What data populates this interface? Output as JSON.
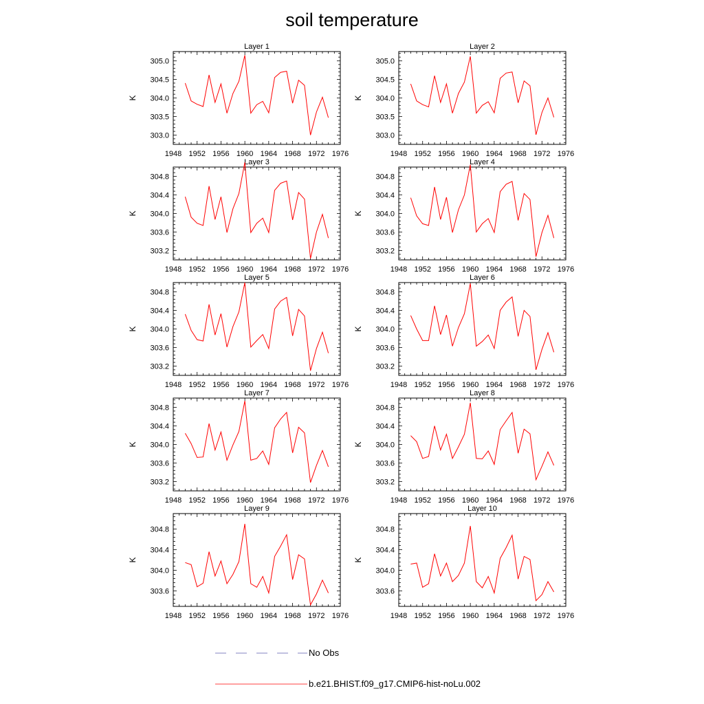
{
  "page": {
    "title": "soil temperature"
  },
  "legend": {
    "items": [
      {
        "label": "No Obs",
        "style": "dashed",
        "color": "#8080c0"
      },
      {
        "label": "b.e21.BHIST.f09_g17.CMIP6-hist-noLu.002",
        "style": "solid",
        "color": "#ff0000"
      }
    ]
  },
  "chart_data": [
    {
      "type": "line",
      "title": "Layer 1",
      "ylabel": "K",
      "xlim": [
        1948,
        1976
      ],
      "xticks": [
        1948,
        1952,
        1956,
        1960,
        1964,
        1968,
        1972,
        1976
      ],
      "ylim": [
        302.75,
        305.25
      ],
      "yticks": [
        "303.0",
        "303.5",
        "304.0",
        "304.5",
        "305.0"
      ],
      "x": [
        1950,
        1951,
        1952,
        1953,
        1954,
        1955,
        1956,
        1957,
        1958,
        1959,
        1960,
        1961,
        1962,
        1963,
        1964,
        1965,
        1966,
        1967,
        1968,
        1969,
        1970,
        1971,
        1972,
        1973,
        1974
      ],
      "series": [
        {
          "name": "b.e21.BHIST.f09_g17.CMIP6-hist-noLu.002",
          "color": "#ff0000",
          "values": [
            304.4,
            303.92,
            303.83,
            303.77,
            304.62,
            303.88,
            304.38,
            303.59,
            304.12,
            304.45,
            305.15,
            303.59,
            303.82,
            303.91,
            303.6,
            304.55,
            304.69,
            304.72,
            303.86,
            304.48,
            304.34,
            303.0,
            303.62,
            304.02,
            303.47
          ]
        }
      ]
    },
    {
      "type": "line",
      "title": "Layer 2",
      "ylabel": "K",
      "xlim": [
        1948,
        1976
      ],
      "xticks": [
        1948,
        1952,
        1956,
        1960,
        1964,
        1968,
        1972,
        1976
      ],
      "ylim": [
        302.75,
        305.25
      ],
      "yticks": [
        "303.0",
        "303.5",
        "304.0",
        "304.5",
        "305.0"
      ],
      "x": [
        1950,
        1951,
        1952,
        1953,
        1954,
        1955,
        1956,
        1957,
        1958,
        1959,
        1960,
        1961,
        1962,
        1963,
        1964,
        1965,
        1966,
        1967,
        1968,
        1969,
        1970,
        1971,
        1972,
        1973,
        1974
      ],
      "series": [
        {
          "name": "b.e21.BHIST.f09_g17.CMIP6-hist-noLu.002",
          "color": "#ff0000",
          "values": [
            304.38,
            303.92,
            303.82,
            303.76,
            304.6,
            303.88,
            304.38,
            303.59,
            304.12,
            304.43,
            305.12,
            303.59,
            303.8,
            303.9,
            303.6,
            304.53,
            304.67,
            304.7,
            303.87,
            304.46,
            304.33,
            303.01,
            303.61,
            304.0,
            303.48
          ]
        }
      ]
    },
    {
      "type": "line",
      "title": "Layer 3",
      "ylabel": "K",
      "xlim": [
        1948,
        1976
      ],
      "xticks": [
        1948,
        1952,
        1956,
        1960,
        1964,
        1968,
        1972,
        1976
      ],
      "ylim": [
        303.0,
        305.0
      ],
      "yticks": [
        "303.2",
        "303.6",
        "304.0",
        "304.4",
        "304.8"
      ],
      "x": [
        1950,
        1951,
        1952,
        1953,
        1954,
        1955,
        1956,
        1957,
        1958,
        1959,
        1960,
        1961,
        1962,
        1963,
        1964,
        1965,
        1966,
        1967,
        1968,
        1969,
        1970,
        1971,
        1972,
        1973,
        1974
      ],
      "series": [
        {
          "name": "b.e21.BHIST.f09_g17.CMIP6-hist-noLu.002",
          "color": "#ff0000",
          "values": [
            304.36,
            303.92,
            303.79,
            303.74,
            304.59,
            303.87,
            304.36,
            303.59,
            304.1,
            304.43,
            305.1,
            303.59,
            303.79,
            303.9,
            303.59,
            304.5,
            304.65,
            304.7,
            303.86,
            304.45,
            304.31,
            303.03,
            303.6,
            303.98,
            303.47
          ]
        }
      ]
    },
    {
      "type": "line",
      "title": "Layer 4",
      "ylabel": "K",
      "xlim": [
        1948,
        1976
      ],
      "xticks": [
        1948,
        1952,
        1956,
        1960,
        1964,
        1968,
        1972,
        1976
      ],
      "ylim": [
        303.0,
        305.0
      ],
      "yticks": [
        "303.2",
        "303.6",
        "304.0",
        "304.4",
        "304.8"
      ],
      "x": [
        1950,
        1951,
        1952,
        1953,
        1954,
        1955,
        1956,
        1957,
        1958,
        1959,
        1960,
        1961,
        1962,
        1963,
        1964,
        1965,
        1966,
        1967,
        1968,
        1969,
        1970,
        1971,
        1972,
        1973,
        1974
      ],
      "series": [
        {
          "name": "b.e21.BHIST.f09_g17.CMIP6-hist-noLu.002",
          "color": "#ff0000",
          "values": [
            304.34,
            303.95,
            303.78,
            303.74,
            304.57,
            303.87,
            304.35,
            303.59,
            304.08,
            304.4,
            305.05,
            303.6,
            303.78,
            303.89,
            303.59,
            304.47,
            304.63,
            304.69,
            303.85,
            304.43,
            304.3,
            303.07,
            303.59,
            303.96,
            303.47
          ]
        }
      ]
    },
    {
      "type": "line",
      "title": "Layer 5",
      "ylabel": "K",
      "xlim": [
        1948,
        1976
      ],
      "xticks": [
        1948,
        1952,
        1956,
        1960,
        1964,
        1968,
        1972,
        1976
      ],
      "ylim": [
        303.0,
        305.0
      ],
      "yticks": [
        "303.2",
        "303.6",
        "304.0",
        "304.4",
        "304.8"
      ],
      "x": [
        1950,
        1951,
        1952,
        1953,
        1954,
        1955,
        1956,
        1957,
        1958,
        1959,
        1960,
        1961,
        1962,
        1963,
        1964,
        1965,
        1966,
        1967,
        1968,
        1969,
        1970,
        1971,
        1972,
        1973,
        1974
      ],
      "series": [
        {
          "name": "b.e21.BHIST.f09_g17.CMIP6-hist-noLu.002",
          "color": "#ff0000",
          "values": [
            304.32,
            303.97,
            303.77,
            303.74,
            304.53,
            303.87,
            304.33,
            303.61,
            304.05,
            304.37,
            305.0,
            303.61,
            303.75,
            303.88,
            303.58,
            304.43,
            304.6,
            304.68,
            303.85,
            304.42,
            304.28,
            303.1,
            303.58,
            303.93,
            303.48
          ]
        }
      ]
    },
    {
      "type": "line",
      "title": "Layer 6",
      "ylabel": "K",
      "xlim": [
        1948,
        1976
      ],
      "xticks": [
        1948,
        1952,
        1956,
        1960,
        1964,
        1968,
        1972,
        1976
      ],
      "ylim": [
        303.0,
        305.0
      ],
      "yticks": [
        "303.2",
        "303.6",
        "304.0",
        "304.4",
        "304.8"
      ],
      "x": [
        1950,
        1951,
        1952,
        1953,
        1954,
        1955,
        1956,
        1957,
        1958,
        1959,
        1960,
        1961,
        1962,
        1963,
        1964,
        1965,
        1966,
        1967,
        1968,
        1969,
        1970,
        1971,
        1972,
        1973,
        1974
      ],
      "series": [
        {
          "name": "b.e21.BHIST.f09_g17.CMIP6-hist-noLu.002",
          "color": "#ff0000",
          "values": [
            304.29,
            304.0,
            303.75,
            303.75,
            304.5,
            303.88,
            304.3,
            303.63,
            304.03,
            304.33,
            304.98,
            303.63,
            303.73,
            303.87,
            303.58,
            304.4,
            304.58,
            304.69,
            303.84,
            304.4,
            304.27,
            303.12,
            303.56,
            303.92,
            303.5
          ]
        }
      ]
    },
    {
      "type": "line",
      "title": "Layer 7",
      "ylabel": "K",
      "xlim": [
        1948,
        1976
      ],
      "xticks": [
        1948,
        1952,
        1956,
        1960,
        1964,
        1968,
        1972,
        1976
      ],
      "ylim": [
        303.0,
        305.0
      ],
      "yticks": [
        "303.2",
        "303.6",
        "304.0",
        "304.4",
        "304.8"
      ],
      "x": [
        1950,
        1951,
        1952,
        1953,
        1954,
        1955,
        1956,
        1957,
        1958,
        1959,
        1960,
        1961,
        1962,
        1963,
        1964,
        1965,
        1966,
        1967,
        1968,
        1969,
        1970,
        1971,
        1972,
        1973,
        1974
      ],
      "series": [
        {
          "name": "b.e21.BHIST.f09_g17.CMIP6-hist-noLu.002",
          "color": "#ff0000",
          "values": [
            304.24,
            304.02,
            303.72,
            303.73,
            304.45,
            303.88,
            304.27,
            303.66,
            303.99,
            304.28,
            304.94,
            303.66,
            303.7,
            303.86,
            303.57,
            304.36,
            304.55,
            304.69,
            303.82,
            304.37,
            304.25,
            303.18,
            303.55,
            303.87,
            303.52
          ]
        }
      ]
    },
    {
      "type": "line",
      "title": "Layer 8",
      "ylabel": "K",
      "xlim": [
        1948,
        1976
      ],
      "xticks": [
        1948,
        1952,
        1956,
        1960,
        1964,
        1968,
        1972,
        1976
      ],
      "ylim": [
        303.0,
        305.0
      ],
      "yticks": [
        "303.2",
        "303.6",
        "304.0",
        "304.4",
        "304.8"
      ],
      "x": [
        1950,
        1951,
        1952,
        1953,
        1954,
        1955,
        1956,
        1957,
        1958,
        1959,
        1960,
        1961,
        1962,
        1963,
        1964,
        1965,
        1966,
        1967,
        1968,
        1969,
        1970,
        1971,
        1972,
        1973,
        1974
      ],
      "series": [
        {
          "name": "b.e21.BHIST.f09_g17.CMIP6-hist-noLu.002",
          "color": "#ff0000",
          "values": [
            304.19,
            304.06,
            303.7,
            303.74,
            304.4,
            303.88,
            304.22,
            303.7,
            303.95,
            304.22,
            304.9,
            303.7,
            303.69,
            303.86,
            303.57,
            304.32,
            304.51,
            304.69,
            303.81,
            304.33,
            304.23,
            303.24,
            303.53,
            303.84,
            303.55
          ]
        }
      ]
    },
    {
      "type": "line",
      "title": "Layer 9",
      "ylabel": "K",
      "xlim": [
        1948,
        1976
      ],
      "xticks": [
        1948,
        1952,
        1956,
        1960,
        1964,
        1968,
        1972,
        1976
      ],
      "ylim": [
        303.3,
        305.1
      ],
      "yticks": [
        "303.6",
        "304.0",
        "304.4",
        "304.8"
      ],
      "x": [
        1950,
        1951,
        1952,
        1953,
        1954,
        1955,
        1956,
        1957,
        1958,
        1959,
        1960,
        1961,
        1962,
        1963,
        1964,
        1965,
        1966,
        1967,
        1968,
        1969,
        1970,
        1971,
        1972,
        1973,
        1974
      ],
      "series": [
        {
          "name": "b.e21.BHIST.f09_g17.CMIP6-hist-noLu.002",
          "color": "#ff0000",
          "values": [
            304.15,
            304.11,
            303.68,
            303.75,
            304.36,
            303.89,
            304.18,
            303.74,
            303.92,
            304.17,
            304.9,
            303.74,
            303.67,
            303.88,
            303.56,
            304.27,
            304.47,
            304.69,
            303.82,
            304.3,
            304.22,
            303.33,
            303.54,
            303.81,
            303.56
          ]
        }
      ]
    },
    {
      "type": "line",
      "title": "Layer 10",
      "ylabel": "K",
      "xlim": [
        1948,
        1976
      ],
      "xticks": [
        1948,
        1952,
        1956,
        1960,
        1964,
        1968,
        1972,
        1976
      ],
      "ylim": [
        303.3,
        305.1
      ],
      "yticks": [
        "303.6",
        "304.0",
        "304.4",
        "304.8"
      ],
      "x": [
        1950,
        1951,
        1952,
        1953,
        1954,
        1955,
        1956,
        1957,
        1958,
        1959,
        1960,
        1961,
        1962,
        1963,
        1964,
        1965,
        1966,
        1967,
        1968,
        1969,
        1970,
        1971,
        1972,
        1973,
        1974
      ],
      "series": [
        {
          "name": "b.e21.BHIST.f09_g17.CMIP6-hist-noLu.002",
          "color": "#ff0000",
          "values": [
            304.12,
            304.14,
            303.67,
            303.74,
            304.32,
            303.89,
            304.14,
            303.78,
            303.9,
            304.14,
            304.86,
            303.78,
            303.66,
            303.88,
            303.56,
            304.23,
            304.44,
            304.68,
            303.83,
            304.27,
            304.21,
            303.41,
            303.53,
            303.78,
            303.58
          ]
        }
      ]
    }
  ]
}
